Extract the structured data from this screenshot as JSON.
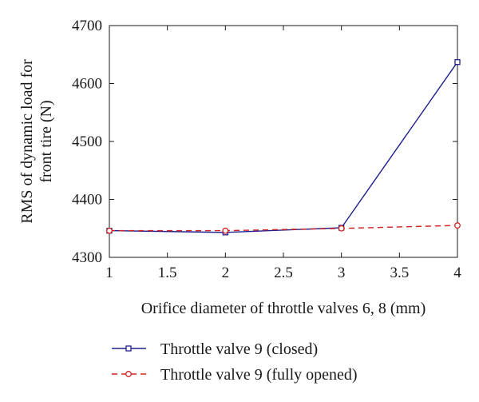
{
  "chart_data": {
    "type": "line",
    "title": "",
    "xlabel": "Orifice diameter of throttle valves 6, 8 (mm)",
    "ylabel_lines": [
      "RMS of dynamic load for",
      "front tire (N)"
    ],
    "x": [
      1,
      2,
      3,
      4
    ],
    "xlim": [
      1,
      4
    ],
    "ylim": [
      4300,
      4700
    ],
    "x_ticks": [
      "1",
      "1.5",
      "2",
      "2.5",
      "3",
      "3.5",
      "4"
    ],
    "y_ticks": [
      "4300",
      "4400",
      "4500",
      "4600",
      "4700"
    ],
    "grid": false,
    "legend_position": "bottom",
    "series": [
      {
        "name": "Throttle valve 9 (closed)",
        "values": [
          4346,
          4343,
          4351,
          4637
        ],
        "color": "#1f1f8f",
        "marker": "square",
        "line": "solid"
      },
      {
        "name": "Throttle valve 9 (fully opened)",
        "values": [
          4346,
          4346,
          4350,
          4355
        ],
        "color": "#d42020",
        "marker": "circle",
        "line": "dashed"
      }
    ]
  }
}
